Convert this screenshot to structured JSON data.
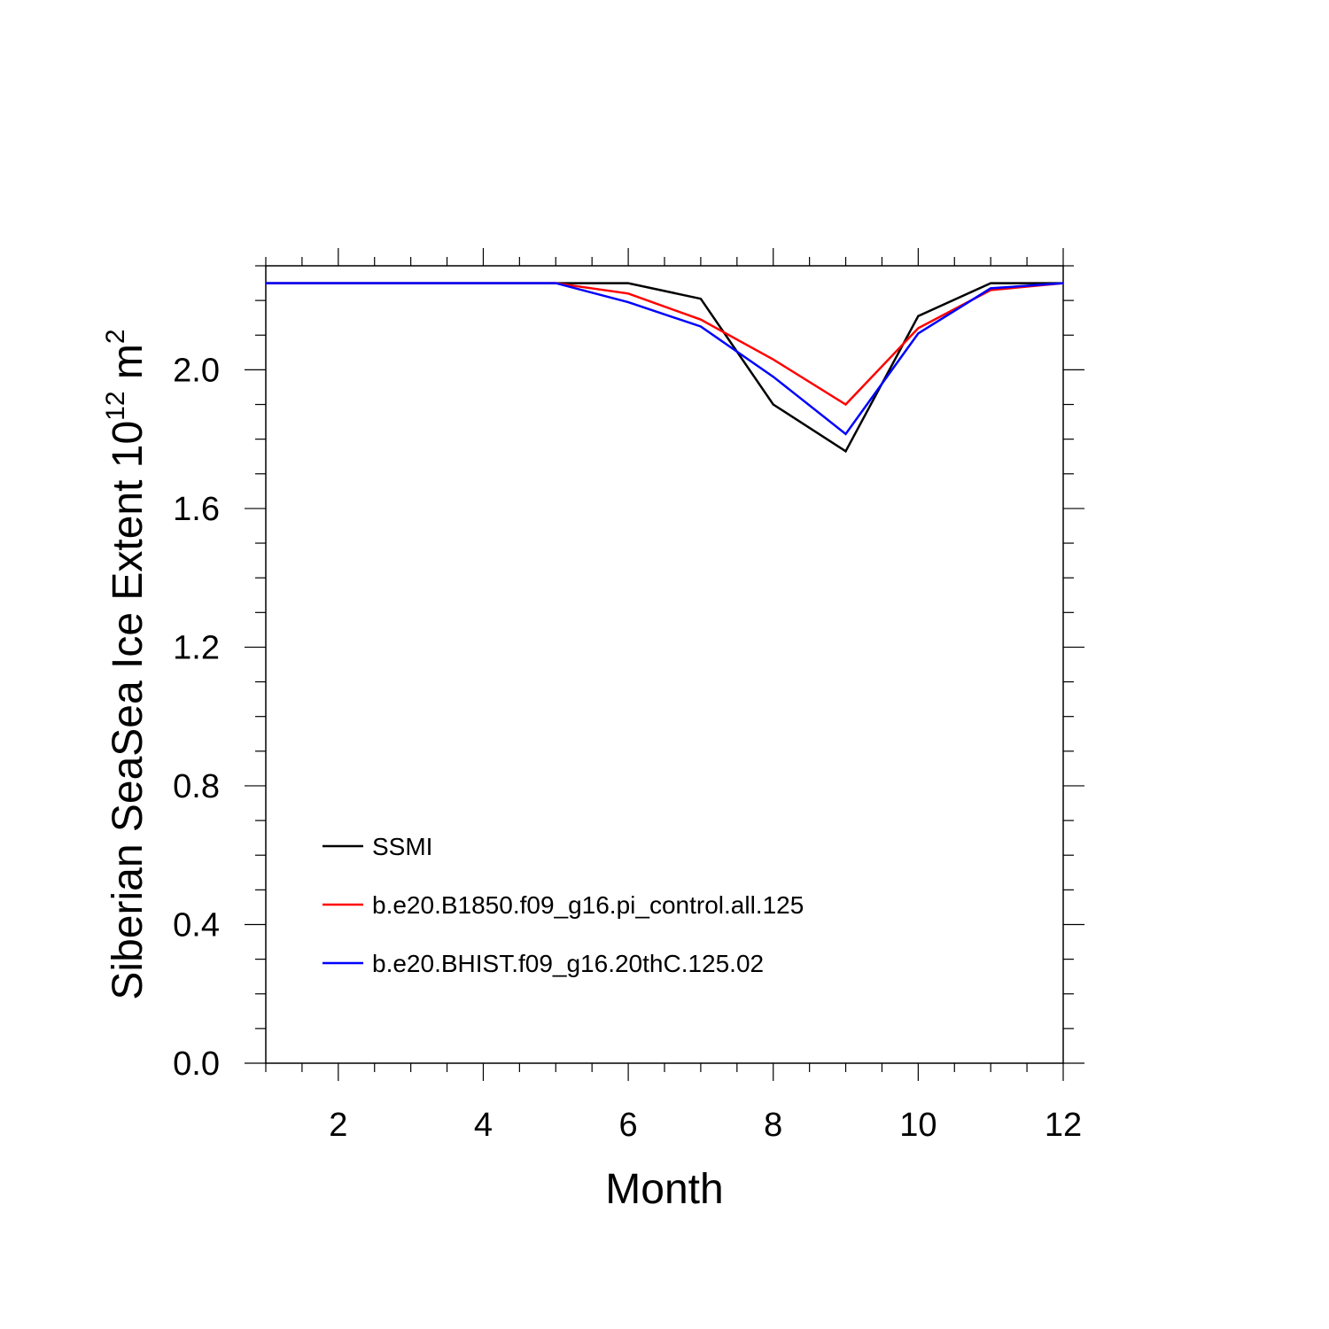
{
  "chart_data": {
    "type": "line",
    "title": "",
    "xlabel": "Month",
    "ylabel_main": "Siberian SeaSea Ice Extent 10",
    "ylabel_exp": "12",
    "ylabel_unit": " m",
    "ylabel_unit_exp": "2",
    "xlim": [
      1,
      12
    ],
    "ylim": [
      0.0,
      2.3
    ],
    "x_ticks": [
      2,
      4,
      6,
      8,
      10,
      12
    ],
    "x_tick_labels": [
      "2",
      "4",
      "6",
      "8",
      "10",
      "12"
    ],
    "y_ticks": [
      0.0,
      0.4,
      0.8,
      1.2,
      1.6,
      2.0
    ],
    "y_tick_labels": [
      "0.0",
      "0.4",
      "0.8",
      "1.2",
      "1.6",
      "2.0"
    ],
    "x": [
      1,
      2,
      3,
      4,
      5,
      6,
      7,
      8,
      9,
      10,
      11,
      12
    ],
    "series": [
      {
        "name": "SSMI",
        "color": "#000000",
        "values": [
          2.25,
          2.25,
          2.25,
          2.25,
          2.25,
          2.25,
          2.205,
          1.9,
          1.765,
          2.155,
          2.25,
          2.25
        ]
      },
      {
        "name": "b.e20.B1850.f09_g16.pi_control.all.125",
        "color": "#ff0000",
        "values": [
          2.25,
          2.25,
          2.25,
          2.25,
          2.25,
          2.22,
          2.145,
          2.03,
          1.9,
          2.12,
          2.23,
          2.25
        ]
      },
      {
        "name": "b.e20.BHIST.f09_g16.20thC.125.02",
        "color": "#0000ff",
        "values": [
          2.25,
          2.25,
          2.25,
          2.25,
          2.25,
          2.195,
          2.125,
          1.98,
          1.815,
          2.105,
          2.235,
          2.25
        ]
      }
    ],
    "legend_position": "lower-left",
    "grid": false
  }
}
